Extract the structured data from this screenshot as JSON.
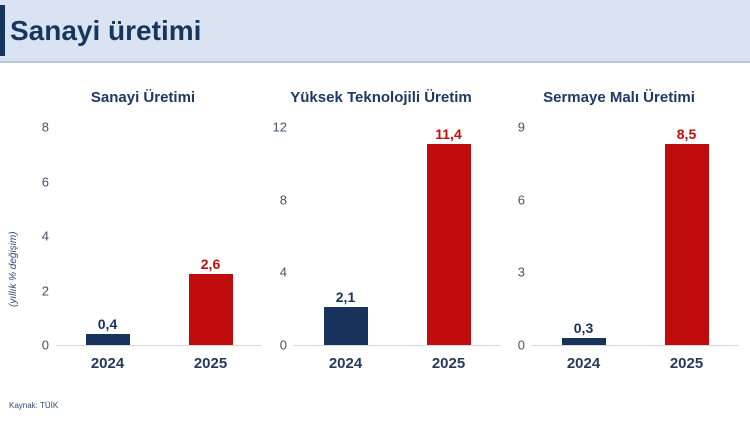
{
  "header": {
    "title": "Sanayi üretimi"
  },
  "footer": {
    "source": "Kaynak: TÜİK"
  },
  "axis_label": "(yıllık % değişim)",
  "colors": {
    "header_bg": "#dae3f1",
    "header_text": "#17365d",
    "accent_bar": "#17365d",
    "navy_2024": "#17325b",
    "red_2025": "#c00c0c",
    "tick_label": "#44546a",
    "axis_line": "#d8d8d8"
  },
  "chart_data": [
    {
      "type": "bar",
      "title": "Sanayi Üretimi",
      "categories": [
        "2024",
        "2025"
      ],
      "values": [
        0.4,
        2.6
      ],
      "value_labels": [
        "0,4",
        "2,6"
      ],
      "colors": [
        "#17325b",
        "#c00c0c"
      ],
      "xlabel": "",
      "ylabel": "(yıllık % değişim)",
      "ylim": [
        0,
        8
      ],
      "yticks": [
        0,
        2,
        4,
        6,
        8
      ],
      "grid": false,
      "legend": "none"
    },
    {
      "type": "bar",
      "title": "Yüksek Teknolojili Üretim",
      "categories": [
        "2024",
        "2025"
      ],
      "values": [
        2.1,
        11.4
      ],
      "value_labels": [
        "2,1",
        "11,4"
      ],
      "colors": [
        "#17325b",
        "#c00c0c"
      ],
      "xlabel": "",
      "ylabel": "(yıllık % değişim)",
      "ylim": [
        0,
        12
      ],
      "yticks": [
        0,
        4,
        8,
        12
      ],
      "grid": false,
      "legend": "none"
    },
    {
      "type": "bar",
      "title": "Sermaye Malı Üretimi",
      "categories": [
        "2024",
        "2025"
      ],
      "values": [
        0.3,
        8.5
      ],
      "value_labels": [
        "0,3",
        "8,5"
      ],
      "colors": [
        "#17325b",
        "#c00c0c"
      ],
      "xlabel": "",
      "ylabel": "(yıllık % değişim)",
      "ylim": [
        0,
        9
      ],
      "yticks": [
        0,
        3,
        6,
        9
      ],
      "grid": false,
      "legend": "none"
    }
  ]
}
